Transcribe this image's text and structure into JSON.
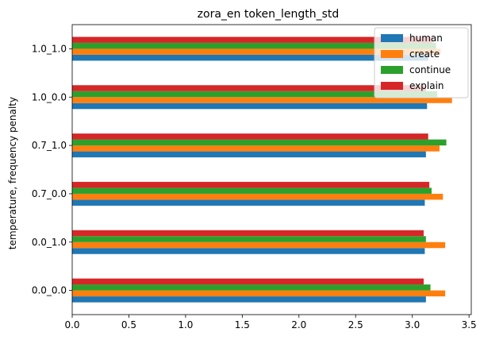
{
  "chart_data": {
    "type": "bar",
    "orientation": "horizontal",
    "title": "zora_en token_length_std",
    "xlabel": "",
    "ylabel": "temperature, frequency penalty",
    "categories": [
      "0.0_0.0",
      "0.0_1.0",
      "0.7_0.0",
      "0.7_1.0",
      "1.0_0.0",
      "1.0_1.0"
    ],
    "x_ticks": [
      "0.0",
      "0.5",
      "1.0",
      "1.5",
      "2.0",
      "2.5",
      "3.0",
      "3.5"
    ],
    "xlim": [
      0,
      3.52
    ],
    "grid": false,
    "legend_position": "top-right",
    "series": [
      {
        "name": "human",
        "color": "#1f77b4",
        "values": [
          3.12,
          3.11,
          3.11,
          3.12,
          3.13,
          3.14
        ]
      },
      {
        "name": "create",
        "color": "#ff7f0e",
        "values": [
          3.29,
          3.29,
          3.27,
          3.24,
          3.35,
          3.25
        ]
      },
      {
        "name": "continue",
        "color": "#2ca02c",
        "values": [
          3.16,
          3.12,
          3.17,
          3.3,
          3.22,
          3.21
        ]
      },
      {
        "name": "explain",
        "color": "#d62728",
        "values": [
          3.1,
          3.1,
          3.15,
          3.14,
          3.12,
          3.18
        ]
      }
    ]
  }
}
